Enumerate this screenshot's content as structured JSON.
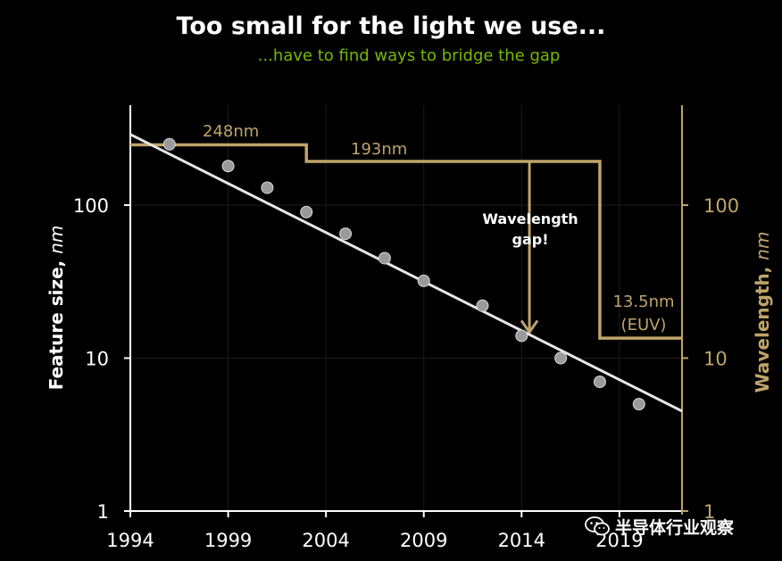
{
  "colors": {
    "background": "#000000",
    "accent": "#bfa46a",
    "subtitle": "#76b900",
    "fit": "#e6e6e6",
    "point": "#9a9a9a",
    "grid": "#1c1c1c"
  },
  "chart_data": {
    "type": "scatter",
    "title": "Too small for the light we use...",
    "subtitle": "...have to find ways to bridge the gap",
    "xlabel": "",
    "ylabel": "Feature size, nm",
    "y2label": "Wavelength, nm",
    "xlim": [
      1994,
      2022.2
    ],
    "ylim": [
      1,
      480
    ],
    "yscale": "log",
    "xticks": [
      "1994",
      "1999",
      "2004",
      "2009",
      "2014",
      "2019"
    ],
    "yticks": [
      "1",
      "10",
      "100"
    ],
    "y2ticks": [
      "1",
      "10",
      "100"
    ],
    "grid": true,
    "series": [
      {
        "name": "",
        "kind": "scatter",
        "points": [
          {
            "x": 1996,
            "y": 250
          },
          {
            "x": 1999,
            "y": 180
          },
          {
            "x": 2001,
            "y": 130
          },
          {
            "x": 2003,
            "y": 90
          },
          {
            "x": 2005,
            "y": 65
          },
          {
            "x": 2007,
            "y": 45
          },
          {
            "x": 2009,
            "y": 32
          },
          {
            "x": 2012,
            "y": 22
          },
          {
            "x": 2014,
            "y": 14
          },
          {
            "x": 2016,
            "y": 10
          },
          {
            "x": 2018,
            "y": 7
          },
          {
            "x": 2020,
            "y": 5
          }
        ]
      },
      {
        "name": "",
        "kind": "trend-line",
        "points": [
          {
            "x": 1994,
            "y": 290
          },
          {
            "x": 2022.2,
            "y": 4.5
          }
        ]
      },
      {
        "name": "",
        "kind": "wavelength-step",
        "points": [
          {
            "x": 1994,
            "y": 248
          },
          {
            "x": 2003,
            "y": 248
          },
          {
            "x": 2003,
            "y": 193
          },
          {
            "x": 2018,
            "y": 193
          },
          {
            "x": 2018,
            "y": 13.5
          },
          {
            "x": 2022.2,
            "y": 13.5
          }
        ]
      }
    ],
    "annotations": [
      {
        "id": "248",
        "text": "248nm"
      },
      {
        "id": "193",
        "text": "193nm"
      },
      {
        "id": "euv1",
        "text": "13.5nm"
      },
      {
        "id": "euv2",
        "text": "(EUV)"
      },
      {
        "id": "gap1",
        "text": "Wavelength"
      },
      {
        "id": "gap2",
        "text": "gap!"
      }
    ],
    "gap_arrow": {
      "x": 2014.4,
      "from": 193,
      "to": 14
    }
  },
  "watermark": {
    "text": "半导体行业观察",
    "icon": "wechat-icon"
  }
}
